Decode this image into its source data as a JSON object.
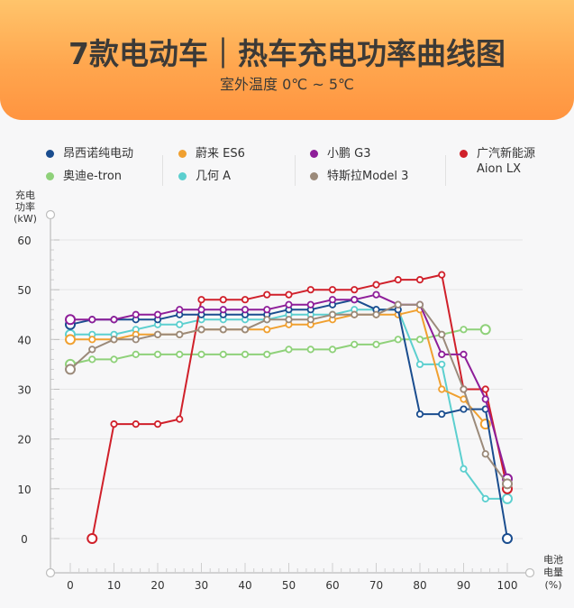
{
  "header": {
    "title": "7款电动车｜热车充电功率曲线图",
    "subtitle": "室外温度 0℃ ~ 5℃"
  },
  "legend": [
    {
      "label": "昂西诺纯电动",
      "color": "#1a4d8f"
    },
    {
      "label": "奥迪e-tron",
      "color": "#8fd17a"
    },
    {
      "label": "蔚来 ES6",
      "color": "#f0a030"
    },
    {
      "label": "几何 A",
      "color": "#5ccfcf"
    },
    {
      "label": "小鹏 G3",
      "color": "#8e1e99"
    },
    {
      "label": "特斯拉Model 3",
      "color": "#9b8a7a"
    },
    {
      "label": "广汽新能源",
      "label2": "Aion LX",
      "color": "#d0202a"
    }
  ],
  "axes": {
    "y_label_1": "充电",
    "y_label_2": "功率",
    "y_unit": "(kW)",
    "x_label_1": "电池",
    "x_label_2": "电量",
    "x_unit": "(%)"
  },
  "chart_data": {
    "type": "line",
    "title": "7款电动车｜热车充电功率曲线图",
    "subtitle": "室外温度 0℃ ~ 5℃",
    "xlabel": "电池电量 (%)",
    "ylabel": "充电功率 (kW)",
    "xlim": [
      0,
      100
    ],
    "ylim": [
      0,
      60
    ],
    "x_ticks": [
      0,
      10,
      20,
      30,
      40,
      50,
      60,
      70,
      80,
      90,
      100
    ],
    "y_ticks": [
      0,
      10,
      20,
      30,
      40,
      50,
      60
    ],
    "grid": "horizontal",
    "legend_position": "top",
    "series": [
      {
        "name": "昂西诺纯电动",
        "color": "#1a4d8f",
        "x": [
          0,
          5,
          10,
          15,
          20,
          25,
          30,
          35,
          40,
          45,
          50,
          55,
          60,
          65,
          70,
          75,
          80,
          85,
          90,
          95,
          100
        ],
        "values": [
          43,
          44,
          44,
          44,
          44,
          45,
          45,
          45,
          45,
          45,
          46,
          46,
          47,
          48,
          46,
          46,
          25,
          25,
          26,
          26,
          0
        ]
      },
      {
        "name": "蔚来 ES6",
        "color": "#f0a030",
        "x": [
          0,
          5,
          10,
          15,
          20,
          25,
          30,
          35,
          40,
          45,
          50,
          55,
          60,
          65,
          70,
          75,
          80,
          85,
          90,
          95
        ],
        "values": [
          40,
          40,
          40,
          41,
          41,
          41,
          42,
          42,
          42,
          42,
          43,
          43,
          44,
          45,
          45,
          45,
          46,
          30,
          28,
          23
        ]
      },
      {
        "name": "小鹏 G3",
        "color": "#8e1e99",
        "x": [
          0,
          5,
          10,
          15,
          20,
          25,
          30,
          35,
          40,
          45,
          50,
          55,
          60,
          65,
          70,
          75,
          80,
          85,
          90,
          95,
          100
        ],
        "values": [
          44,
          44,
          44,
          45,
          45,
          46,
          46,
          46,
          46,
          46,
          47,
          47,
          48,
          48,
          49,
          47,
          47,
          37,
          37,
          28,
          12
        ]
      },
      {
        "name": "广汽新能源 Aion LX",
        "color": "#d0202a",
        "x": [
          5,
          10,
          15,
          20,
          25,
          30,
          35,
          40,
          45,
          50,
          55,
          60,
          65,
          70,
          75,
          80,
          85,
          90,
          95,
          100
        ],
        "values": [
          0,
          23,
          23,
          23,
          24,
          48,
          48,
          48,
          49,
          49,
          50,
          50,
          50,
          51,
          52,
          52,
          53,
          30,
          30,
          10
        ]
      },
      {
        "name": "奥迪e-tron",
        "color": "#8fd17a",
        "x": [
          0,
          5,
          10,
          15,
          20,
          25,
          30,
          35,
          40,
          45,
          50,
          55,
          60,
          65,
          70,
          75,
          80,
          85,
          90,
          95
        ],
        "values": [
          35,
          36,
          36,
          37,
          37,
          37,
          37,
          37,
          37,
          37,
          38,
          38,
          38,
          39,
          39,
          40,
          40,
          41,
          42,
          42
        ]
      },
      {
        "name": "几何 A",
        "color": "#5ccfcf",
        "x": [
          0,
          5,
          10,
          15,
          20,
          25,
          30,
          35,
          40,
          45,
          50,
          55,
          60,
          65,
          70,
          75,
          80,
          85,
          90,
          95,
          100
        ],
        "values": [
          41,
          41,
          41,
          42,
          43,
          43,
          44,
          44,
          44,
          44,
          45,
          45,
          45,
          46,
          46,
          46,
          35,
          35,
          14,
          8,
          8
        ]
      },
      {
        "name": "特斯拉Model 3",
        "color": "#9b8a7a",
        "x": [
          0,
          5,
          10,
          15,
          20,
          25,
          30,
          35,
          40,
          45,
          50,
          55,
          60,
          65,
          70,
          75,
          80,
          85,
          90,
          95,
          100
        ],
        "values": [
          34,
          38,
          40,
          40,
          41,
          41,
          42,
          42,
          42,
          44,
          44,
          44,
          45,
          45,
          45,
          47,
          47,
          41,
          30,
          17,
          11
        ]
      }
    ]
  }
}
